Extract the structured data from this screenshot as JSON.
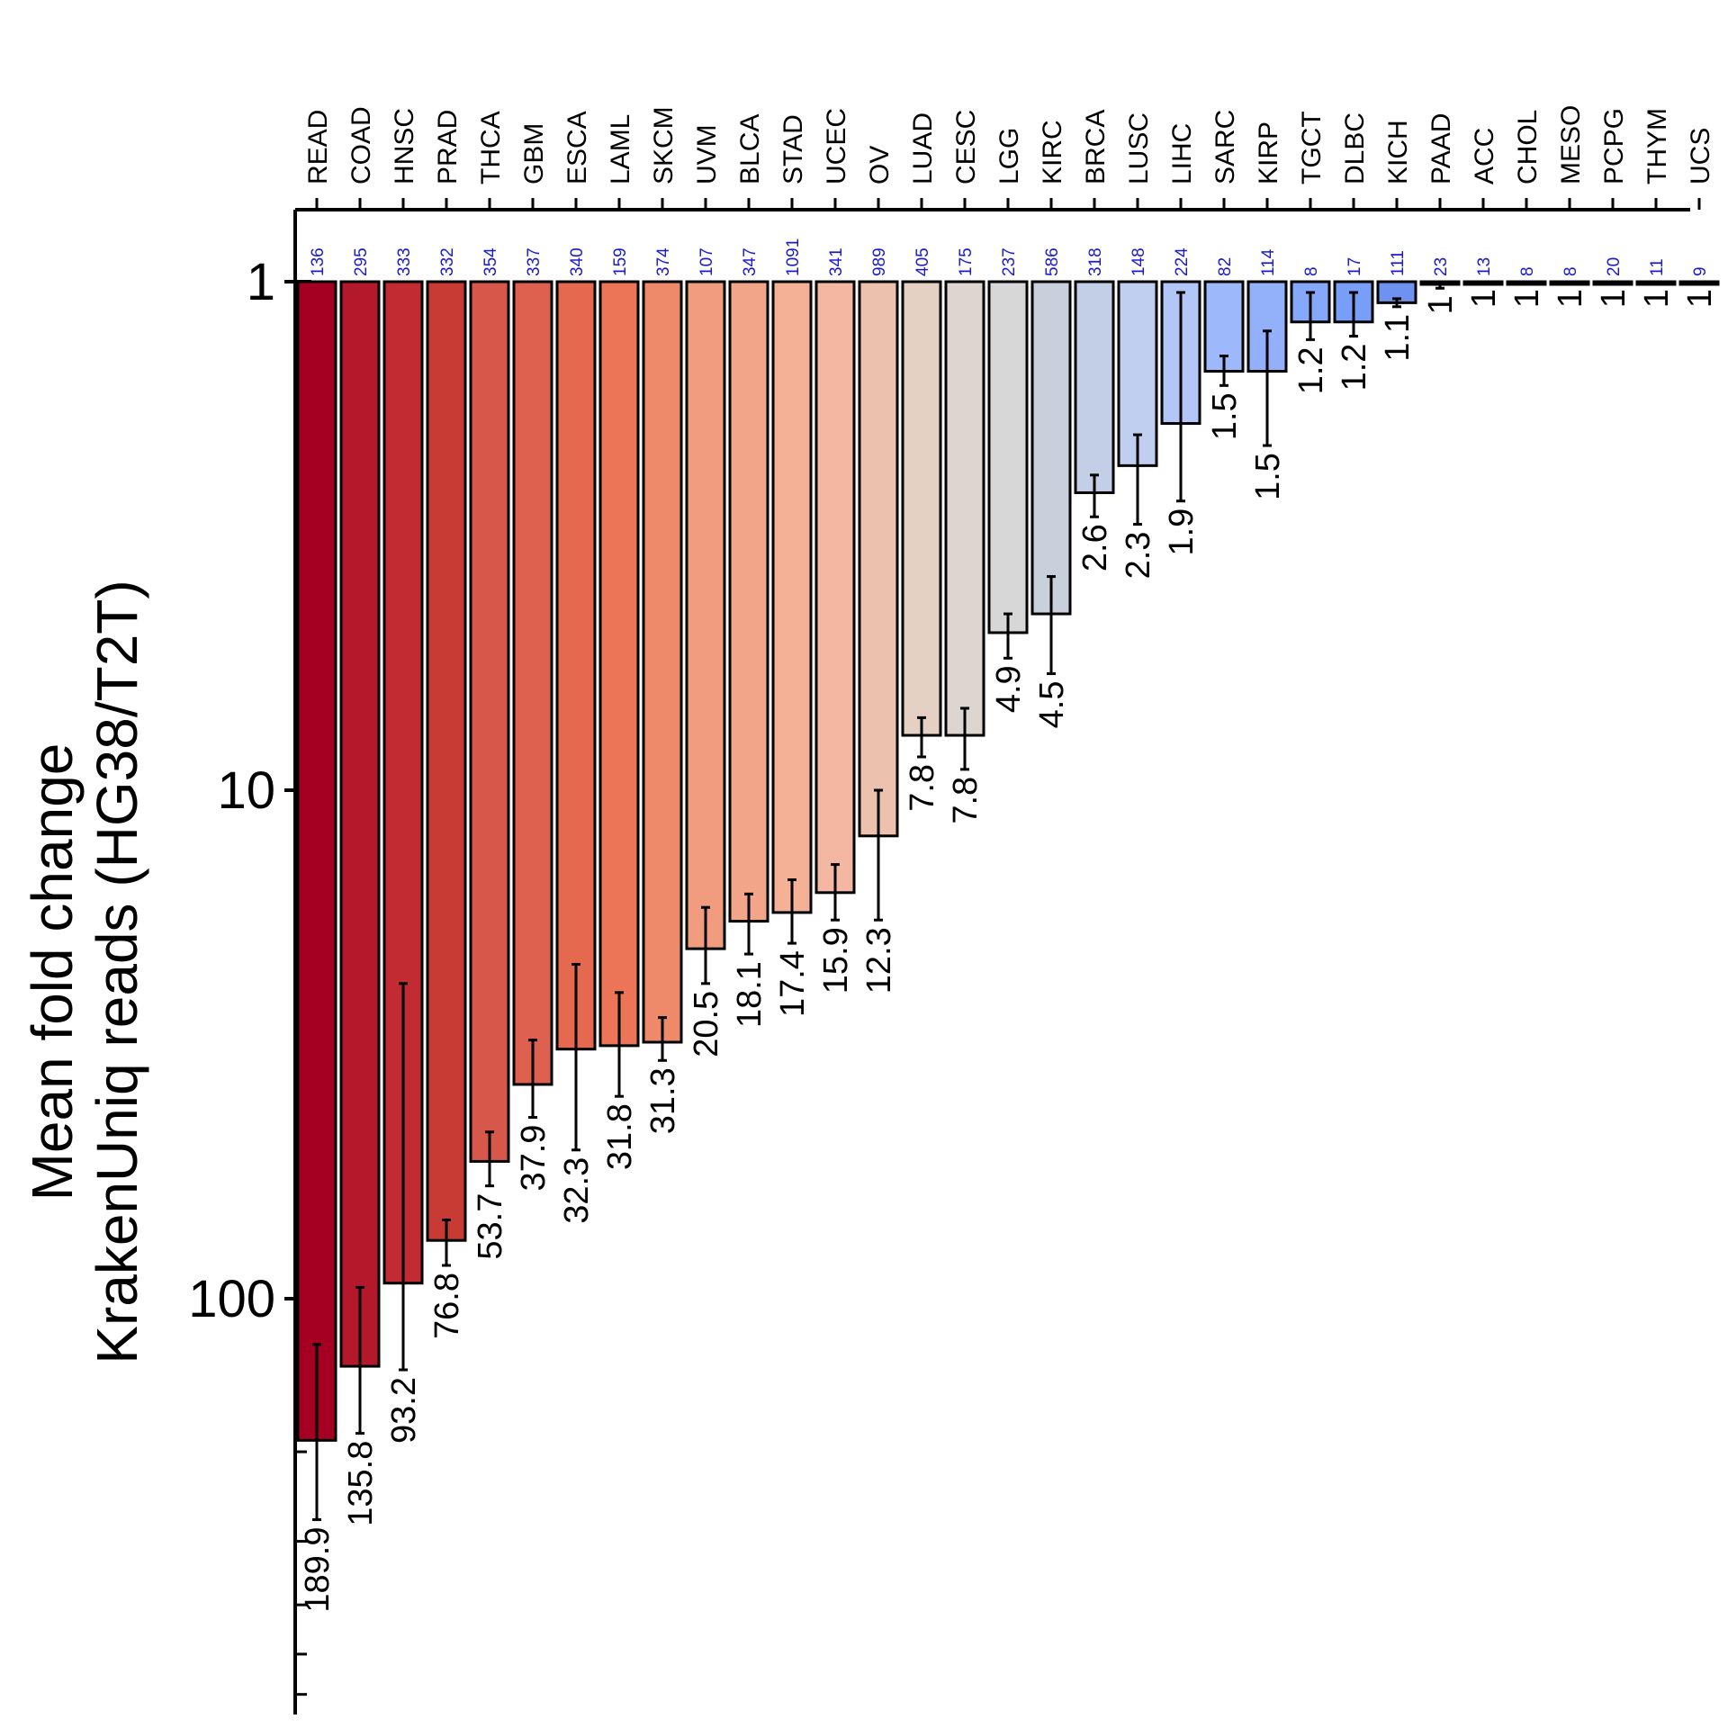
{
  "chart_data": {
    "type": "bar",
    "title": "",
    "xlabel": "",
    "ylabel_lines": [
      "Mean fold change",
      "KrakenUniq reads (HG38/T2T)"
    ],
    "y_scale": "log",
    "y_inverted": true,
    "ylim": [
      1,
      300
    ],
    "yticks": [
      1,
      10,
      100
    ],
    "ytick_labels": [
      "1",
      "10",
      "100"
    ],
    "categories": [
      "READ",
      "COAD",
      "HNSC",
      "PRAD",
      "THCA",
      "GBM",
      "ESCA",
      "LAML",
      "SKCM",
      "UVM",
      "BLCA",
      "STAD",
      "UCEC",
      "OV",
      "LUAD",
      "CESC",
      "LGG",
      "KIRC",
      "BRCA",
      "LUSC",
      "LIHC",
      "SARC",
      "KIRP",
      "TGCT",
      "DLBC",
      "KICH",
      "PAAD",
      "ACC",
      "CHOL",
      "MESO",
      "PCPG",
      "THYM",
      "UCS"
    ],
    "values": [
      189.9,
      135.8,
      93.2,
      76.8,
      53.7,
      37.9,
      32.3,
      31.8,
      31.3,
      20.5,
      18.1,
      17.4,
      15.9,
      12.3,
      7.8,
      7.8,
      4.9,
      4.5,
      2.6,
      2.3,
      1.9,
      1.5,
      1.5,
      1.2,
      1.2,
      1.1,
      1.0,
      1.0,
      1.0,
      1.0,
      1.0,
      1.0,
      1.0
    ],
    "value_labels": [
      "189.9",
      "135.8",
      "93.2",
      "76.8",
      "53.7",
      "37.9",
      "32.3",
      "31.8",
      "31.3",
      "20.5",
      "18.1",
      "17.4",
      "15.9",
      "12.3",
      "7.8",
      "7.8",
      "4.9",
      "4.5",
      "2.6",
      "2.3",
      "1.9",
      "1.5",
      "1.5",
      "1.2",
      "1.2",
      "1.1",
      "1",
      "1",
      "1",
      "1",
      "1",
      "1",
      "1"
    ],
    "error_low": [
      123,
      95,
      24,
      70,
      47,
      31,
      22,
      25,
      28,
      17,
      16,
      15,
      14,
      10,
      7.2,
      6.9,
      4.5,
      3.8,
      2.4,
      2.0,
      1.05,
      1.4,
      1.25,
      1.05,
      1.05,
      1.08,
      1.0,
      1.0,
      1.0,
      1.0,
      1.0,
      1.0,
      1.0
    ],
    "error_high": [
      272,
      184,
      138,
      86,
      60,
      44,
      51,
      40,
      34,
      24,
      21,
      20,
      18,
      18,
      8.6,
      9.1,
      5.5,
      5.9,
      2.9,
      3.0,
      2.7,
      1.6,
      2.1,
      1.3,
      1.28,
      1.12,
      1.03,
      1.0,
      1.0,
      1.0,
      1.0,
      1.0,
      1.0
    ],
    "sample_counts": [
      "136",
      "295",
      "333",
      "332",
      "354",
      "337",
      "340",
      "159",
      "374",
      "107",
      "347",
      "1091",
      "341",
      "989",
      "405",
      "175",
      "237",
      "586",
      "318",
      "148",
      "224",
      "82",
      "114",
      "8",
      "17",
      "111",
      "23",
      "13",
      "8",
      "8",
      "20",
      "11",
      "9"
    ],
    "bar_colors": [
      "#a50021",
      "#b3182b",
      "#c22b31",
      "#c73b34",
      "#d7574a",
      "#de6150",
      "#e4694f",
      "#eb7556",
      "#ee896a",
      "#f19c7e",
      "#f2a589",
      "#f4b196",
      "#f4b8a2",
      "#ecc1ae",
      "#e5d0c4",
      "#ddd6d0",
      "#d7d7d7",
      "#c8d0dc",
      "#c3cfe6",
      "#c0cff0",
      "#b2c6f7",
      "#9db9fb",
      "#93b1fb",
      "#86a8fb",
      "#799ef8",
      "#6e92f0",
      "#a9bde8",
      "#d0d0d0",
      "#d0d0d0",
      "#d0d0d0",
      "#d0d0d0",
      "#d0d0d0",
      "#d0d0d0"
    ],
    "grid": false,
    "legend": "none"
  }
}
